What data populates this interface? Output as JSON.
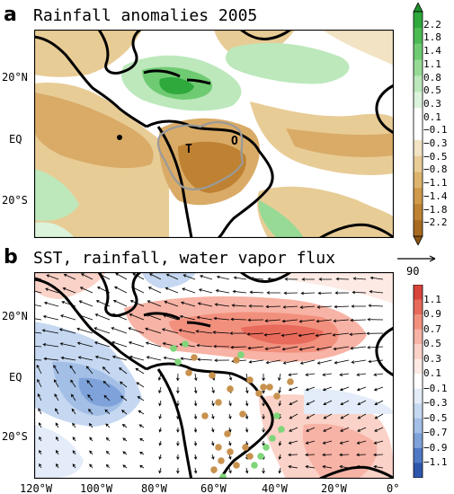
{
  "panel_a": {
    "letter": "a",
    "title": "Rainfall anomalies 2005",
    "lat_labels": [
      "20°N",
      "EQ",
      "20°S"
    ],
    "markers": [
      "T",
      "O"
    ],
    "colorbar": {
      "levels": [
        "2.2",
        "1.8",
        "1.4",
        "1.1",
        "0.8",
        "0.5",
        "0.3",
        "0.1",
        "−0.1",
        "−0.3",
        "−0.5",
        "−0.8",
        "−1.1",
        "−1.4",
        "−1.8",
        "−2.2"
      ],
      "colors": [
        "#1e8f2e",
        "#2fa83c",
        "#4cbb54",
        "#6fcb72",
        "#96da96",
        "#bce8bc",
        "#dbf3db",
        "#ffffff",
        "#ffffff",
        "#f2e3c4",
        "#e8cc96",
        "#ddb46e",
        "#d09a4b",
        "#be8232",
        "#a86a20",
        "#8a5414"
      ]
    }
  },
  "panel_b": {
    "letter": "b",
    "title": "SST, rainfall, water vapor flux",
    "vector_ref": "90",
    "lat_labels": [
      "20°N",
      "EQ",
      "20°S"
    ],
    "lon_labels": [
      "120°W",
      "100°W",
      "80°W",
      "60°W",
      "40°W",
      "20°W",
      "0°"
    ],
    "colorbar": {
      "levels": [
        "1.1",
        "0.9",
        "0.7",
        "0.5",
        "0.3",
        "0.1",
        "−0.1",
        "−0.3",
        "−0.5",
        "−0.7",
        "−0.9",
        "−1.1"
      ],
      "colors": [
        "#d9453b",
        "#e86a5a",
        "#f2907e",
        "#f7b3a5",
        "#fbd2c8",
        "#fdeae4",
        "#ffffff",
        "#e3ecf8",
        "#c6d8f1",
        "#a3bfe6",
        "#7ea2d9",
        "#4f79c4",
        "#2e56ad"
      ]
    },
    "station_colors": {
      "dry": "#c8924e",
      "wet": "#7fd67a"
    }
  }
}
